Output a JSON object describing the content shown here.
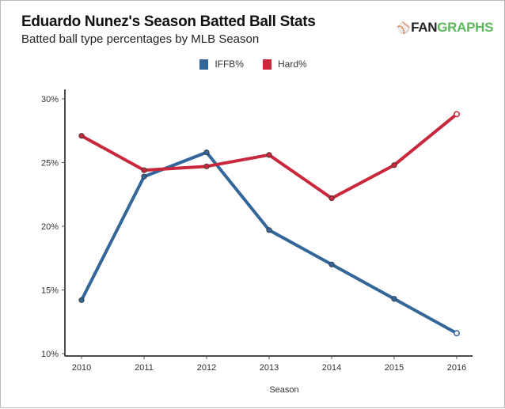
{
  "header": {
    "title": "Eduardo Nunez's Season Batted Ball Stats",
    "subtitle": "Batted ball type percentages by MLB Season",
    "logo_part1": "FAN",
    "logo_part2": "GRAPHS"
  },
  "colors": {
    "iffb": "#336699",
    "hard": "#c9283c",
    "logo_green": "#5cb85c"
  },
  "chart_data": {
    "type": "line",
    "title": "Eduardo Nunez's Season Batted Ball Stats",
    "subtitle": "Batted ball type percentages by MLB Season",
    "xlabel": "Season",
    "ylabel": "",
    "x": [
      "2010",
      "2011",
      "2012",
      "2013",
      "2014",
      "2015",
      "2016"
    ],
    "ylim": [
      10,
      30
    ],
    "yticks": [
      "10%",
      "15%",
      "20%",
      "25%",
      "30%"
    ],
    "ytick_values": [
      10,
      15,
      20,
      25,
      30
    ],
    "grid": false,
    "legend_position": "top-center",
    "series": [
      {
        "name": "IFFB%",
        "color": "#336699",
        "values": [
          14.2,
          23.9,
          25.8,
          19.7,
          17.0,
          14.3,
          11.6
        ]
      },
      {
        "name": "Hard%",
        "color": "#c9283c",
        "values": [
          27.1,
          24.4,
          24.7,
          25.6,
          22.2,
          24.8,
          28.8
        ]
      }
    ]
  }
}
